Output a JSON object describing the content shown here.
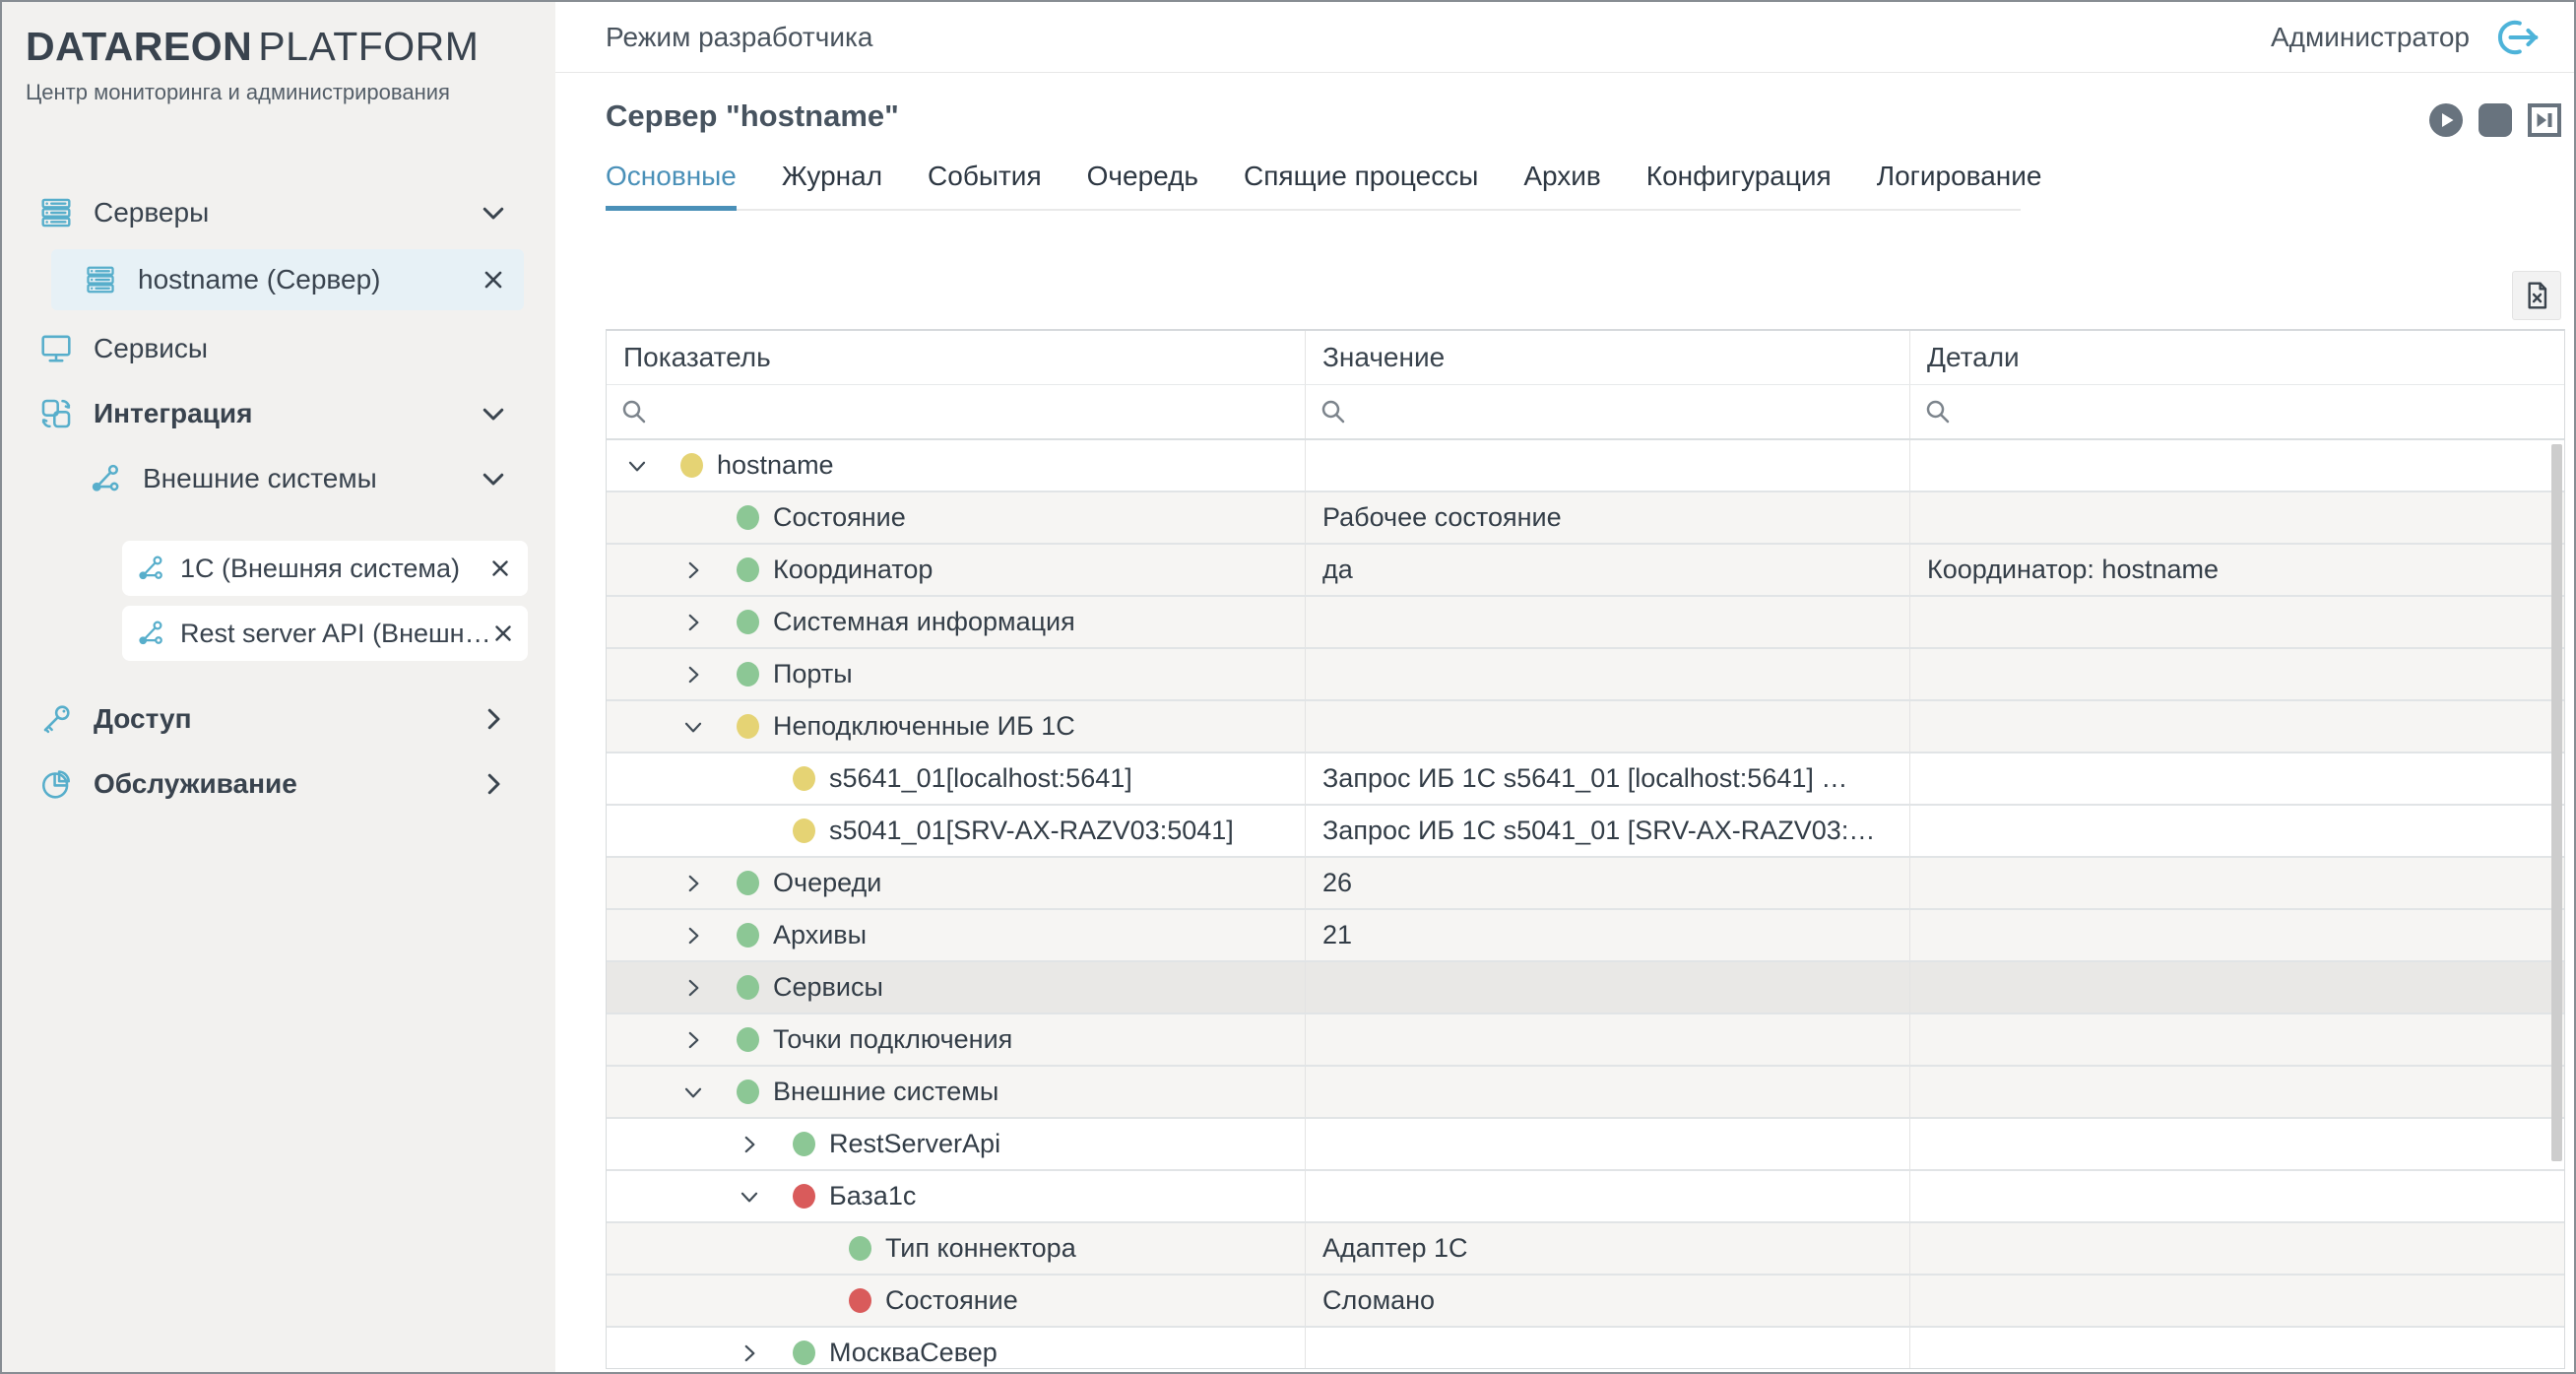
{
  "brand": {
    "bold": "DATAREON",
    "light": "PLATFORM",
    "subtitle": "Центр мониторинга и администрирования"
  },
  "topbar": {
    "mode": "Режим разработчика",
    "user": "Администратор"
  },
  "sidebar": {
    "items": [
      {
        "label": "Серверы",
        "icon": "servers-icon",
        "level": 0,
        "expanded": true
      },
      {
        "label": "hostname (Сервер)",
        "icon": "servers-icon",
        "level": 1,
        "selected": true,
        "closable": true
      },
      {
        "label": "Сервисы",
        "icon": "services-icon",
        "level": 0
      },
      {
        "label": "Интеграция",
        "icon": "integration-icon",
        "level": 0,
        "expanded": true
      },
      {
        "label": "Внешние системы",
        "icon": "external-systems-icon",
        "level": 1,
        "expanded": true
      },
      {
        "label": "1С (Внешняя система)",
        "icon": "external-systems-icon",
        "level": 2,
        "card": true,
        "closable": true
      },
      {
        "label": "Rest server API (Внешн…",
        "icon": "external-systems-icon",
        "level": 2,
        "card": true,
        "closable": true
      },
      {
        "label": "Доступ",
        "icon": "key-icon",
        "level": 0,
        "collapsed": true
      },
      {
        "label": "Обслуживание",
        "icon": "maintenance-icon",
        "level": 0,
        "collapsed": true
      }
    ]
  },
  "page": {
    "title": "Сервер \"hostname\""
  },
  "tabs": [
    {
      "label": "Основные",
      "active": true
    },
    {
      "label": "Журнал"
    },
    {
      "label": "События"
    },
    {
      "label": "Очередь"
    },
    {
      "label": "Спящие процессы"
    },
    {
      "label": "Архив"
    },
    {
      "label": "Конфигурация"
    },
    {
      "label": "Логирование"
    }
  ],
  "table": {
    "columns": [
      {
        "label": "Показатель"
      },
      {
        "label": "Значение"
      },
      {
        "label": "Детали"
      }
    ],
    "search_placeholders": [
      "",
      "",
      ""
    ],
    "rows": [
      {
        "indicator": "hostname",
        "value": "",
        "details": "",
        "depth": 0,
        "dot": "yellow",
        "expander": "down"
      },
      {
        "indicator": "Состояние",
        "value": "Рабочее состояние",
        "details": "",
        "depth": 1,
        "dot": "green",
        "expander": "none"
      },
      {
        "indicator": "Координатор",
        "value": "да",
        "details": "Координатор: hostname",
        "depth": 1,
        "dot": "green",
        "expander": "right"
      },
      {
        "indicator": "Системная информация",
        "value": "",
        "details": "",
        "depth": 1,
        "dot": "green",
        "expander": "right"
      },
      {
        "indicator": "Порты",
        "value": "",
        "details": "",
        "depth": 1,
        "dot": "green",
        "expander": "right"
      },
      {
        "indicator": "Неподключенные ИБ 1С",
        "value": "",
        "details": "",
        "depth": 1,
        "dot": "yellow",
        "expander": "down"
      },
      {
        "indicator": "s5641_01[localhost:5641]",
        "value": "Запрос ИБ 1С s5641_01 [localhost:5641] …",
        "details": "",
        "depth": 2,
        "dot": "yellow",
        "expander": "none"
      },
      {
        "indicator": "s5041_01[SRV-AX-RAZV03:5041]",
        "value": "Запрос ИБ 1С s5041_01 [SRV-AX-RAZV03:…",
        "details": "",
        "depth": 2,
        "dot": "yellow",
        "expander": "none"
      },
      {
        "indicator": "Очереди",
        "value": "26",
        "details": "",
        "depth": 1,
        "dot": "green",
        "expander": "right"
      },
      {
        "indicator": "Архивы",
        "value": "21",
        "details": "",
        "depth": 1,
        "dot": "green",
        "expander": "right"
      },
      {
        "indicator": "Сервисы",
        "value": "",
        "details": "",
        "depth": 1,
        "dot": "green",
        "expander": "right",
        "highlighted": true
      },
      {
        "indicator": "Точки подключения",
        "value": "",
        "details": "",
        "depth": 1,
        "dot": "green",
        "expander": "right"
      },
      {
        "indicator": "Внешние системы",
        "value": "",
        "details": "",
        "depth": 1,
        "dot": "green",
        "expander": "down"
      },
      {
        "indicator": "RestServerApi",
        "value": "",
        "details": "",
        "depth": 2,
        "dot": "green",
        "expander": "right"
      },
      {
        "indicator": "База1с",
        "value": "",
        "details": "",
        "depth": 2,
        "dot": "red",
        "expander": "down"
      },
      {
        "indicator": "Тип коннектора",
        "value": "Адаптер 1С",
        "details": "",
        "depth": 3,
        "dot": "green",
        "expander": "none"
      },
      {
        "indicator": "Состояние",
        "value": "Сломано",
        "details": "",
        "depth": 3,
        "dot": "red",
        "expander": "none"
      },
      {
        "indicator": "МоскваСевер",
        "value": "",
        "details": "",
        "depth": 2,
        "dot": "green",
        "expander": "right"
      }
    ]
  },
  "icons": {
    "servers-icon": "stacked-server-rack",
    "services-icon": "monitor",
    "integration-icon": "two-squares-sync",
    "external-systems-icon": "node-graph",
    "key-icon": "key",
    "maintenance-icon": "pie-chart",
    "logout-icon": "circle-with-right-arrow",
    "play-icon": "filled-circle-triangle",
    "stop-icon": "filled-rounded-square",
    "step-icon": "triangle-with-bar-in-square",
    "export-excel-icon": "document-with-x",
    "search-icon": "magnifier",
    "close-icon": "✕",
    "chevron-down-icon": "∨",
    "chevron-right-icon": "❯",
    "status-dot": "colored-circle"
  },
  "colors": {
    "accent_teal": "#57aecb",
    "logout_teal": "#4db3d9",
    "tab_active_blue": "#4a90b8",
    "dot_green": "#8cc795",
    "dot_yellow": "#e5d374",
    "dot_red": "#d95b5b",
    "sidebar_bg": "#f2f1ef",
    "selected_item_bg": "#e7f1f6",
    "row_alt_bg": "#f6f5f3",
    "row_highlight_bg": "#e9e8e6",
    "media_button_gray": "#68737e"
  }
}
